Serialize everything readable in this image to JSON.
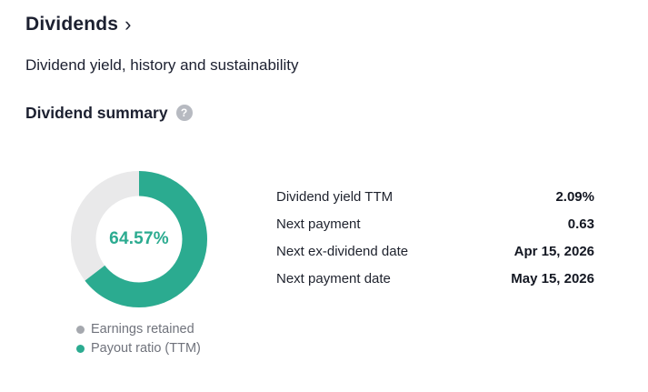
{
  "page": {
    "title": "Dividends",
    "title_chevron": "›",
    "subtitle": "Dividend yield, history and sustainability",
    "section_heading": "Dividend summary",
    "help_icon": "?"
  },
  "chart_data": {
    "type": "pie",
    "subtype": "donut",
    "title": "Payout ratio (TTM)",
    "center_label": "64.57%",
    "slices": [
      {
        "label": "Payout ratio (TTM)",
        "value": 64.57,
        "color": "#2bab90"
      },
      {
        "label": "Earnings retained",
        "value": 35.43,
        "color": "#e9e9ea"
      }
    ],
    "start_angle_deg": 0,
    "direction": "clockwise",
    "legend_position": "bottom",
    "legend": [
      {
        "label": "Earnings retained",
        "color": "#a5a8ae"
      },
      {
        "label": "Payout ratio (TTM)",
        "color": "#2bab90"
      }
    ]
  },
  "summary_table": {
    "rows": [
      {
        "label": "Dividend yield TTM",
        "value": "2.09%"
      },
      {
        "label": "Next payment",
        "value": "0.63"
      },
      {
        "label": "Next ex-dividend date",
        "value": "Apr 15, 2026"
      },
      {
        "label": "Next payment date",
        "value": "May 15, 2026"
      }
    ]
  },
  "colors": {
    "accent_teal": "#2bab90",
    "ring_gray": "#e9e9ea",
    "legend_dot_gray": "#a5a8ae",
    "text_dark": "#1c2030",
    "text_muted": "#70737c",
    "help_icon_bg": "#b7bac1"
  }
}
